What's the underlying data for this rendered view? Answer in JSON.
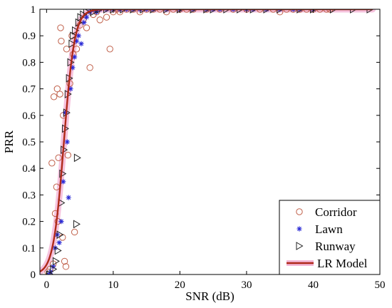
{
  "chart_data": {
    "type": "scatter",
    "xlabel": "SNR (dB)",
    "ylabel": "PRR",
    "xlim": [
      -1,
      50
    ],
    "ylim": [
      0,
      1
    ],
    "xticks": [
      0,
      10,
      20,
      30,
      40,
      50
    ],
    "yticks": [
      0,
      0.1,
      0.2,
      0.3,
      0.4,
      0.5,
      0.6,
      0.7,
      0.8,
      0.9,
      1
    ],
    "grid": false,
    "legend_position": "bottom-right",
    "colors": {
      "corridor": "#c0604a",
      "lawn": "#2b2bd6",
      "runway": "#222222",
      "model": "#b02a1a",
      "model_band": "#f4b8d8"
    },
    "series": [
      {
        "name": "Corridor",
        "marker": "circle",
        "points": [
          [
            0.2,
            0.01
          ],
          [
            0.5,
            0.02
          ],
          [
            0.8,
            0.42
          ],
          [
            1.0,
            0.04
          ],
          [
            1.1,
            0.67
          ],
          [
            1.3,
            0.23
          ],
          [
            1.5,
            0.33
          ],
          [
            1.6,
            0.7
          ],
          [
            1.7,
            0.2
          ],
          [
            1.8,
            0.44
          ],
          [
            2.0,
            0.68
          ],
          [
            2.1,
            0.93
          ],
          [
            2.2,
            0.88
          ],
          [
            2.4,
            0.14
          ],
          [
            2.5,
            0.6
          ],
          [
            2.7,
            0.05
          ],
          [
            2.9,
            0.03
          ],
          [
            3.0,
            0.85
          ],
          [
            3.2,
            0.45
          ],
          [
            3.5,
            0.72
          ],
          [
            3.8,
            0.9
          ],
          [
            4.0,
            0.83
          ],
          [
            4.2,
            0.16
          ],
          [
            4.5,
            0.85
          ],
          [
            5.0,
            0.94
          ],
          [
            5.5,
            0.96
          ],
          [
            6.0,
            0.93
          ],
          [
            6.5,
            0.78
          ],
          [
            7.0,
            0.98
          ],
          [
            7.5,
            0.99
          ],
          [
            8.0,
            0.96
          ],
          [
            9.0,
            0.97
          ],
          [
            9.5,
            0.85
          ],
          [
            10.0,
            0.99
          ],
          [
            10.5,
            1.0
          ],
          [
            11.0,
            0.99
          ],
          [
            12.0,
            1.0
          ],
          [
            13.0,
            1.0
          ],
          [
            14.0,
            0.99
          ],
          [
            15.0,
            1.0
          ],
          [
            16.0,
            1.0
          ],
          [
            17.0,
            1.0
          ],
          [
            18.0,
            0.99
          ],
          [
            19.0,
            1.0
          ],
          [
            20.0,
            1.0
          ],
          [
            21.0,
            1.0
          ],
          [
            22.0,
            1.0
          ],
          [
            24.0,
            1.0
          ],
          [
            26.0,
            1.0
          ],
          [
            28.0,
            1.0
          ],
          [
            30.0,
            1.0
          ],
          [
            32.0,
            1.0
          ],
          [
            34.0,
            1.0
          ],
          [
            35.0,
            0.99
          ],
          [
            36.0,
            1.0
          ],
          [
            37.0,
            1.0
          ],
          [
            38.0,
            1.0
          ],
          [
            39.0,
            1.0
          ],
          [
            40.0,
            1.0
          ],
          [
            41.0,
            1.0
          ],
          [
            42.0,
            1.0
          ],
          [
            42.5,
            1.0
          ]
        ]
      },
      {
        "name": "Lawn",
        "marker": "star",
        "points": [
          [
            0.3,
            0.0
          ],
          [
            0.6,
            0.01
          ],
          [
            1.0,
            0.03
          ],
          [
            1.3,
            0.1
          ],
          [
            1.6,
            0.15
          ],
          [
            1.9,
            0.12
          ],
          [
            2.2,
            0.2
          ],
          [
            2.5,
            0.35
          ],
          [
            2.8,
            0.61
          ],
          [
            3.1,
            0.5
          ],
          [
            3.3,
            0.29
          ],
          [
            3.6,
            0.7
          ],
          [
            3.9,
            0.78
          ],
          [
            4.2,
            0.82
          ],
          [
            4.5,
            0.88
          ],
          [
            4.8,
            0.9
          ],
          [
            5.2,
            0.87
          ],
          [
            5.6,
            0.95
          ],
          [
            6.0,
            0.97
          ],
          [
            6.5,
            0.99
          ],
          [
            7.0,
            1.0
          ],
          [
            7.5,
            0.99
          ],
          [
            8.0,
            1.0
          ],
          [
            9.0,
            1.0
          ],
          [
            10.0,
            1.0
          ],
          [
            11.0,
            1.0
          ],
          [
            12.0,
            1.0
          ],
          [
            13.0,
            1.0
          ],
          [
            14.0,
            1.0
          ],
          [
            15.0,
            1.0
          ],
          [
            16.0,
            1.0
          ],
          [
            18.0,
            1.0
          ],
          [
            20.0,
            1.0
          ],
          [
            22.0,
            1.0
          ],
          [
            24.0,
            1.0
          ],
          [
            25.0,
            1.0
          ],
          [
            26.0,
            1.0
          ],
          [
            28.0,
            1.0
          ],
          [
            30.0,
            1.0
          ],
          [
            31.0,
            1.0
          ],
          [
            33.0,
            1.0
          ],
          [
            35.0,
            1.0
          ],
          [
            37.0,
            1.0
          ],
          [
            38.0,
            1.0
          ],
          [
            40.0,
            1.0
          ]
        ]
      },
      {
        "name": "Runway",
        "marker": "triangle-right",
        "points": [
          [
            0.5,
            0.0
          ],
          [
            1.0,
            0.02
          ],
          [
            1.4,
            0.05
          ],
          [
            1.7,
            0.09
          ],
          [
            2.0,
            0.15
          ],
          [
            2.2,
            0.27
          ],
          [
            2.4,
            0.38
          ],
          [
            2.6,
            0.47
          ],
          [
            2.8,
            0.55
          ],
          [
            3.0,
            0.61
          ],
          [
            3.2,
            0.68
          ],
          [
            3.4,
            0.74
          ],
          [
            3.6,
            0.8
          ],
          [
            3.8,
            0.87
          ],
          [
            4.0,
            0.9
          ],
          [
            4.3,
            0.92
          ],
          [
            4.5,
            0.19
          ],
          [
            4.6,
            0.44
          ],
          [
            4.8,
            0.95
          ],
          [
            5.1,
            0.97
          ],
          [
            5.5,
            0.98
          ],
          [
            6.0,
            0.99
          ],
          [
            7.0,
            0.99
          ],
          [
            8.0,
            1.0
          ],
          [
            9.0,
            1.0
          ],
          [
            10.0,
            1.0
          ],
          [
            11.5,
            1.0
          ],
          [
            13.0,
            1.0
          ],
          [
            14.5,
            1.0
          ],
          [
            16.0,
            1.0
          ],
          [
            18.0,
            1.0
          ],
          [
            20.0,
            1.0
          ],
          [
            22.0,
            1.0
          ],
          [
            24.0,
            1.0
          ],
          [
            25.0,
            1.0
          ],
          [
            27.0,
            1.0
          ],
          [
            29.0,
            1.0
          ],
          [
            31.0,
            1.0
          ],
          [
            33.0,
            1.0
          ],
          [
            35.0,
            1.0
          ],
          [
            38.0,
            1.0
          ],
          [
            40.0,
            1.0
          ],
          [
            43.0,
            1.0
          ],
          [
            46.0,
            1.0
          ],
          [
            48.5,
            1.0
          ]
        ]
      }
    ],
    "model": {
      "name": "LR Model",
      "k": 1.25,
      "x0": 2.6,
      "x_start": -1,
      "x_end": 49
    }
  }
}
